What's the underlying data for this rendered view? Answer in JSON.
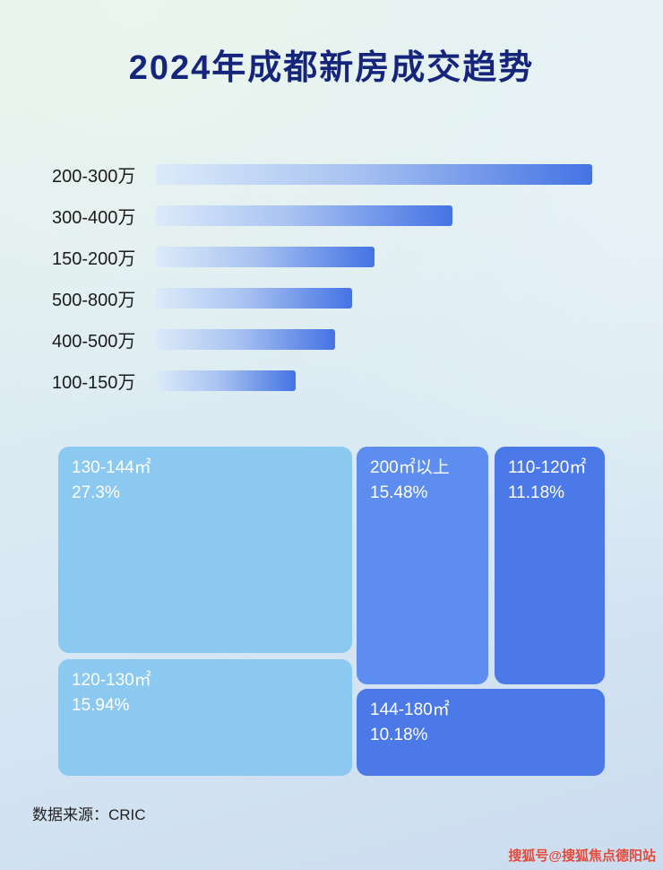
{
  "title": "2024年成都新房成交趋势",
  "source": "数据来源：CRIC",
  "watermark": "搜狐号@搜狐焦点德阳站",
  "colors": {
    "title_text": "#16257c",
    "bar_gradient_start": "#dcebfa",
    "bar_gradient_end": "#4473e4",
    "treemap_light_blue": "#8bc9f1",
    "treemap_medium_blue": "#5d8dee",
    "treemap_dark_blue": "#4b79e8",
    "watermark_red": "#df4a3c"
  },
  "chart_data": [
    {
      "type": "bar",
      "orientation": "horizontal",
      "title": "2024年成都新房成交趋势",
      "categories": [
        "200-300万",
        "300-400万",
        "150-200万",
        "500-800万",
        "400-500万",
        "100-150万"
      ],
      "values": [
        100,
        68,
        50,
        45,
        41,
        32
      ],
      "value_note": "relative bar length, percent of longest bar (no numeric axis shown)",
      "xlabel": "",
      "ylabel": "",
      "grid": false,
      "legend": false
    },
    {
      "type": "treemap",
      "items": [
        {
          "label": "130-144㎡",
          "value": 27.3,
          "display": "27.3%"
        },
        {
          "label": "200㎡以上",
          "value": 15.48,
          "display": "15.48%"
        },
        {
          "label": "110-120㎡",
          "value": 11.18,
          "display": "11.18%"
        },
        {
          "label": "120-130㎡",
          "value": 15.94,
          "display": "15.94%"
        },
        {
          "label": "144-180㎡",
          "value": 10.18,
          "display": "10.18%"
        }
      ]
    }
  ]
}
